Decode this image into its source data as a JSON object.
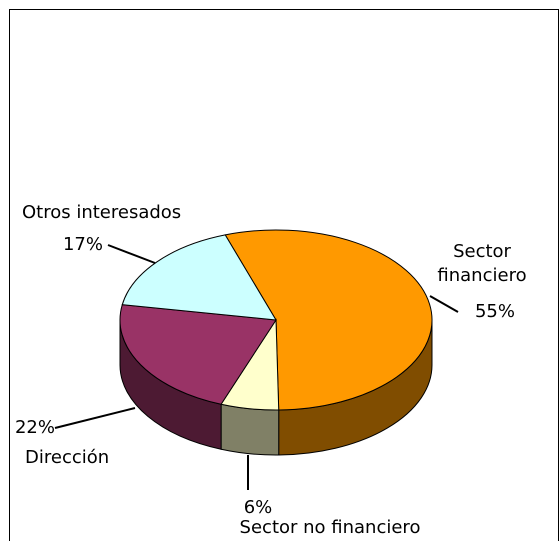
{
  "chart_data": {
    "type": "pie",
    "categories": [
      "Sector financiero",
      "Sector no financiero",
      "Dirección",
      "Otros interesados"
    ],
    "values": [
      55,
      6,
      22,
      17
    ],
    "value_labels": [
      "55%",
      "6%",
      "22%",
      "17%"
    ],
    "colors": [
      "#ff9900",
      "#ffffcc",
      "#993366",
      "#ccffff"
    ],
    "side_colors": [
      "#804d00",
      "#808066",
      "#4d1a33",
      "#668080"
    ],
    "three_d": true
  }
}
